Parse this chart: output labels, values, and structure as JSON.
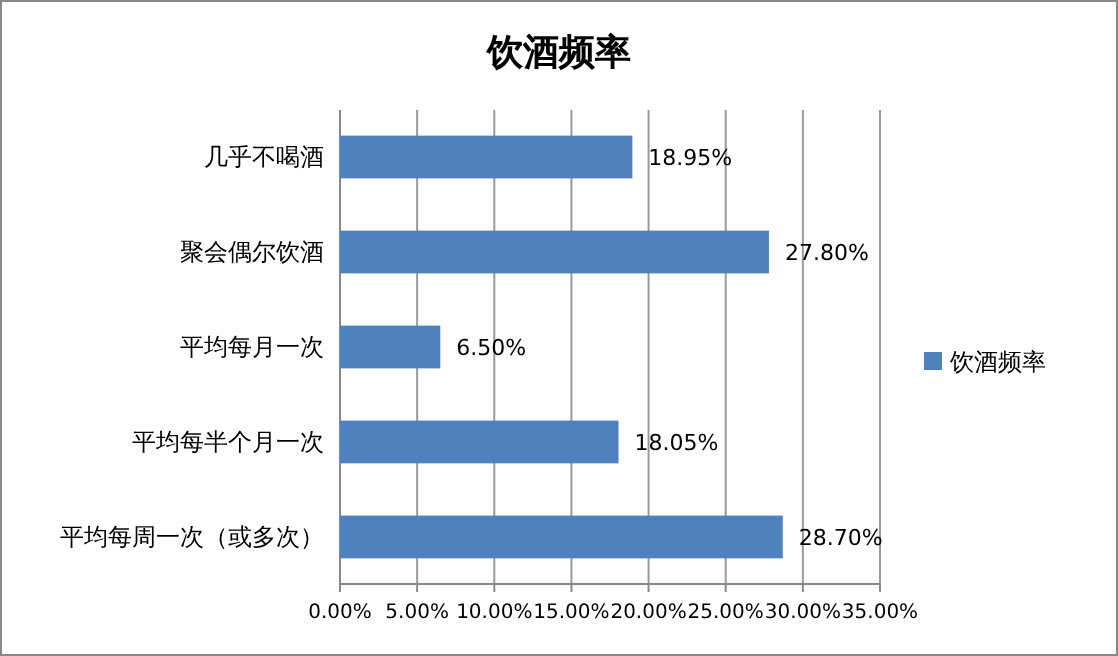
{
  "chart_data": {
    "type": "bar",
    "orientation": "horizontal",
    "title": "饮酒频率",
    "categories": [
      "几乎不喝酒",
      "聚会偶尔饮酒",
      "平均每月一次",
      "平均每半个月一次",
      "平均每周一次（或多次）"
    ],
    "series": [
      {
        "name": "饮酒频率",
        "color": "#4f81bd",
        "values": [
          18.95,
          27.8,
          6.5,
          18.05,
          28.7
        ],
        "value_labels": [
          "18.95%",
          "27.80%",
          "6.50%",
          "18.05%",
          "28.70%"
        ]
      }
    ],
    "xlim": [
      0,
      35
    ],
    "xticks": [
      {
        "value": 0,
        "label": "0.00%"
      },
      {
        "value": 5,
        "label": "5.00%"
      },
      {
        "value": 10,
        "label": "10.00%"
      },
      {
        "value": 15,
        "label": "15.00%"
      },
      {
        "value": 20,
        "label": "20.00%"
      },
      {
        "value": 25,
        "label": "25.00%"
      },
      {
        "value": 30,
        "label": "30.00%"
      },
      {
        "value": 35,
        "label": "35.00%"
      }
    ],
    "grid": "x",
    "legend": "right"
  }
}
